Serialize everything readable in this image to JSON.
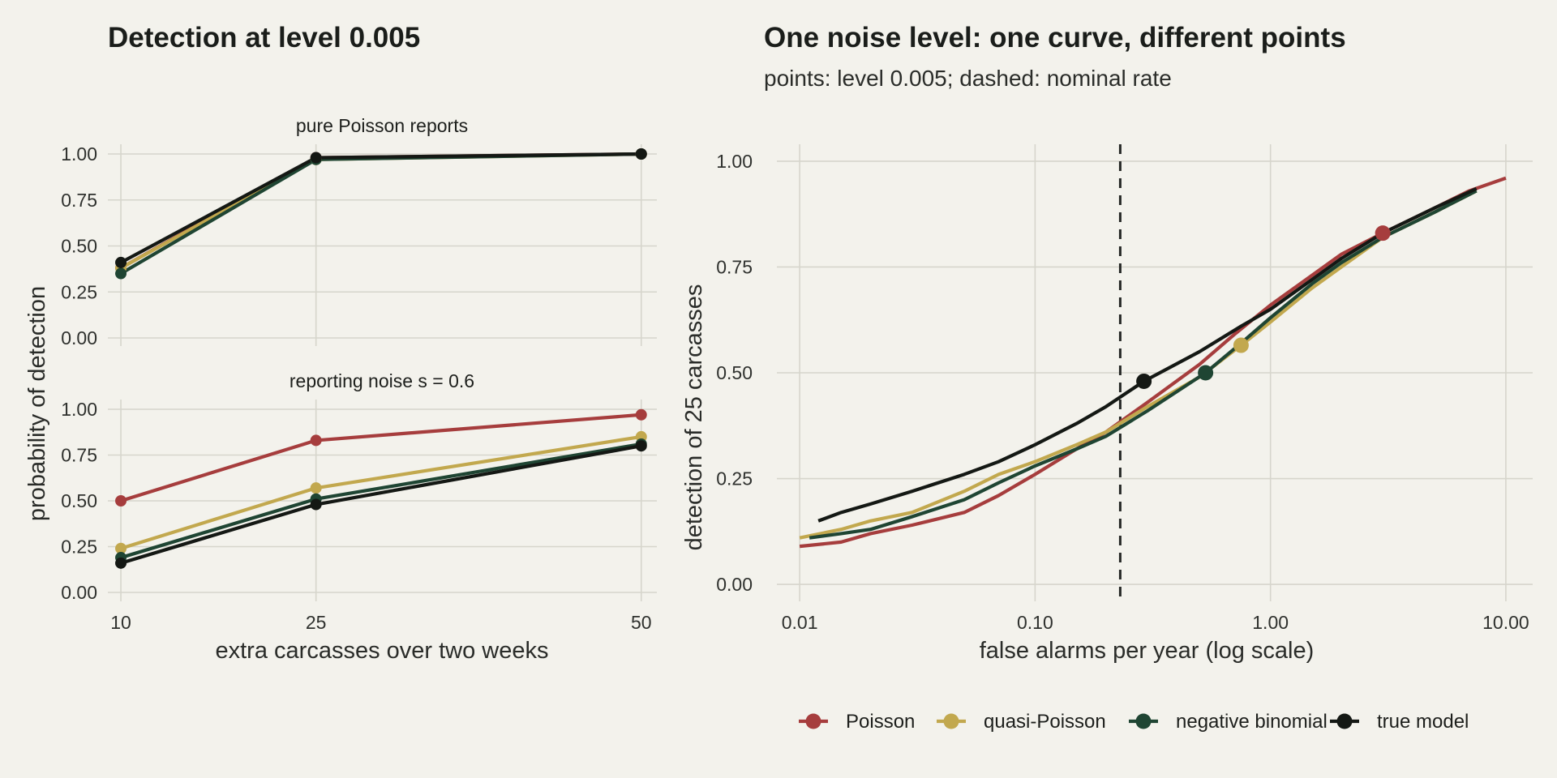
{
  "colors": {
    "Poisson": "#a63d3d",
    "quasi-Poisson": "#c2a84e",
    "negative binomial": "#1f4533",
    "true model": "#141814",
    "background": "#f3f2ec",
    "grid": "#d6d5cc"
  },
  "legend": {
    "position": "bottom",
    "entries": [
      "Poisson",
      "quasi-Poisson",
      "negative binomial",
      "true model"
    ]
  },
  "chart_data": [
    {
      "type": "line",
      "title": "Detection at level 0.005",
      "xlabel": "extra carcasses over two weeks",
      "ylabel": "probability of detection",
      "x": [
        10,
        25,
        50
      ],
      "x_ticks": [
        "10",
        "25",
        "50"
      ],
      "y_ticks": [
        "0.00",
        "0.25",
        "0.50",
        "0.75",
        "1.00"
      ],
      "ylim": [
        0,
        1
      ],
      "grid": true,
      "panels": [
        {
          "strip": "pure Poisson reports",
          "series": [
            {
              "name": "Poisson",
              "values": [
                0.38,
                0.98,
                1.0
              ]
            },
            {
              "name": "quasi-Poisson",
              "values": [
                0.38,
                0.97,
                1.0
              ]
            },
            {
              "name": "negative binomial",
              "values": [
                0.35,
                0.97,
                1.0
              ]
            },
            {
              "name": "true model",
              "values": [
                0.41,
                0.98,
                1.0
              ]
            }
          ]
        },
        {
          "strip": "reporting noise s = 0.6",
          "series": [
            {
              "name": "Poisson",
              "values": [
                0.5,
                0.83,
                0.97
              ]
            },
            {
              "name": "quasi-Poisson",
              "values": [
                0.24,
                0.57,
                0.85
              ]
            },
            {
              "name": "negative binomial",
              "values": [
                0.19,
                0.51,
                0.81
              ]
            },
            {
              "name": "true model",
              "values": [
                0.16,
                0.48,
                0.8
              ]
            }
          ]
        }
      ]
    },
    {
      "type": "line",
      "title": "One noise level: one curve, different points",
      "subtitle": "points: level 0.005; dashed: nominal rate",
      "xlabel": "false alarms per year (log scale)",
      "ylabel": "detection of 25 carcasses",
      "x_scale": "log10",
      "xlim": [
        0.008,
        13
      ],
      "ylim": [
        -0.04,
        1.04
      ],
      "x_ticks": [
        0.01,
        0.1,
        1,
        10
      ],
      "x_tick_labels": [
        "0.01",
        "0.10",
        "1.00",
        "10.00"
      ],
      "y_ticks": [
        "0.00",
        "0.25",
        "0.50",
        "0.75",
        "1.00"
      ],
      "grid": true,
      "nominal_rate": 0.23,
      "series": [
        {
          "name": "Poisson",
          "x": [
            0.01,
            0.015,
            0.02,
            0.03,
            0.05,
            0.07,
            0.1,
            0.15,
            0.2,
            0.3,
            0.5,
            0.7,
            1.0,
            1.5,
            2.0,
            3.0,
            5.0,
            7.0,
            10.0
          ],
          "y": [
            0.09,
            0.1,
            0.12,
            0.14,
            0.17,
            0.21,
            0.26,
            0.32,
            0.36,
            0.43,
            0.52,
            0.59,
            0.66,
            0.73,
            0.78,
            0.83,
            0.89,
            0.93,
            0.96
          ],
          "point": [
            3.0,
            0.83
          ]
        },
        {
          "name": "quasi-Poisson",
          "x": [
            0.01,
            0.015,
            0.02,
            0.03,
            0.05,
            0.07,
            0.1,
            0.15,
            0.2,
            0.3,
            0.5,
            0.75,
            1.0,
            1.5,
            2.0,
            3.0,
            5.0,
            7.5
          ],
          "y": [
            0.11,
            0.13,
            0.15,
            0.17,
            0.22,
            0.26,
            0.29,
            0.33,
            0.36,
            0.42,
            0.49,
            0.565,
            0.62,
            0.7,
            0.75,
            0.82,
            0.88,
            0.93
          ],
          "point": [
            0.75,
            0.565
          ]
        },
        {
          "name": "negative binomial",
          "x": [
            0.011,
            0.015,
            0.02,
            0.03,
            0.05,
            0.07,
            0.1,
            0.15,
            0.2,
            0.3,
            0.53,
            0.75,
            1.0,
            1.5,
            2.0,
            3.0,
            5.0,
            7.5
          ],
          "y": [
            0.11,
            0.12,
            0.13,
            0.16,
            0.2,
            0.24,
            0.28,
            0.32,
            0.35,
            0.41,
            0.5,
            0.57,
            0.63,
            0.71,
            0.76,
            0.82,
            0.88,
            0.93
          ],
          "point": [
            0.53,
            0.5
          ]
        },
        {
          "name": "true model",
          "x": [
            0.012,
            0.015,
            0.02,
            0.03,
            0.05,
            0.07,
            0.1,
            0.15,
            0.2,
            0.29,
            0.5,
            0.75,
            1.0,
            1.5,
            2.0,
            3.0,
            5.0,
            7.5
          ],
          "y": [
            0.15,
            0.17,
            0.19,
            0.22,
            0.26,
            0.29,
            0.33,
            0.38,
            0.42,
            0.48,
            0.55,
            0.61,
            0.65,
            0.72,
            0.77,
            0.83,
            0.89,
            0.935
          ],
          "point": [
            0.29,
            0.48
          ]
        }
      ]
    }
  ]
}
